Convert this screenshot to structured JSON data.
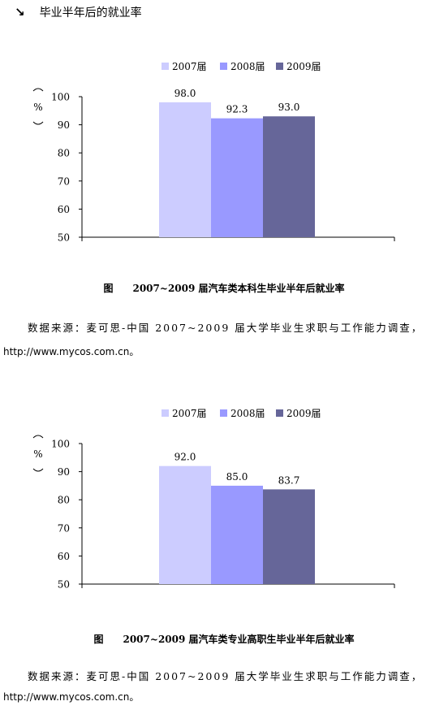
{
  "header": {
    "title": "毕业半年后的就业率",
    "icon": "arrow-down-right-icon"
  },
  "colors": {
    "2007届": "#ccccff",
    "2008届": "#9999ff",
    "2009届": "#666699"
  },
  "chart_data": [
    {
      "type": "bar",
      "categories": [
        ""
      ],
      "series": [
        {
          "name": "2007届",
          "values": [
            98.0
          ]
        },
        {
          "name": "2008届",
          "values": [
            92.3
          ]
        },
        {
          "name": "2009届",
          "values": [
            93.0
          ]
        }
      ],
      "ylabel": "%",
      "ylim": [
        50,
        100
      ],
      "yticks": [
        50,
        60,
        70,
        80,
        90,
        100
      ],
      "legend": "top",
      "grid": false
    },
    {
      "type": "bar",
      "categories": [
        ""
      ],
      "series": [
        {
          "name": "2007届",
          "values": [
            92.0
          ]
        },
        {
          "name": "2008届",
          "values": [
            85.0
          ]
        },
        {
          "name": "2009届",
          "values": [
            83.7
          ]
        }
      ],
      "ylabel": "%",
      "ylim": [
        50,
        100
      ],
      "yticks": [
        50,
        60,
        70,
        80,
        90,
        100
      ],
      "legend": "top",
      "grid": false
    }
  ],
  "captions": [
    {
      "label": "图",
      "text": "2007~2009 届汽车类本科生毕业半年后就业率"
    },
    {
      "label": "图",
      "text": "2007~2009 届汽车类专业高职生毕业半年后就业率"
    }
  ],
  "sources": [
    {
      "text": "数据来源：麦可思-中国 2007~2009 届大学毕业生求职与工作能力调查，",
      "url": "http://www.mycos.com.cn。"
    },
    {
      "text": "数据来源：麦可思-中国 2007~2009 届大学毕业生求职与工作能力调查，",
      "url": "http://www.mycos.com.cn。"
    }
  ]
}
